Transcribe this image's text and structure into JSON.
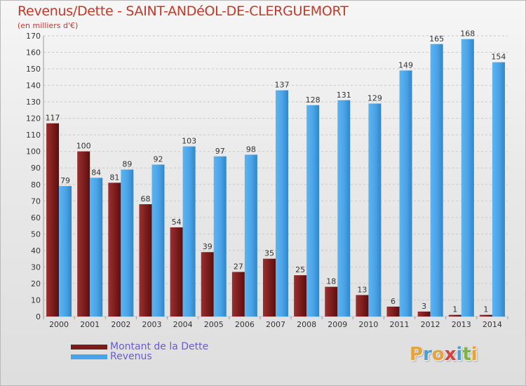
{
  "title": "Revenus/Dette - SAINT-ANDéOL-DE-CLERGUEMORT",
  "subtitle": "(en milliers d'€)",
  "logo": {
    "letters": [
      "P",
      "r",
      "o",
      "x",
      "i",
      "t",
      "i"
    ],
    "colors": [
      "#e8a23a",
      "#4a9fd8",
      "#e8a23a",
      "#d8413a",
      "#4a9fd8",
      "#7cb342",
      "#e8a23a"
    ]
  },
  "legend": [
    {
      "label": "Montant de la Dette",
      "color": "#7b1c1c"
    },
    {
      "label": "Revenus",
      "color": "#4aa3e6"
    }
  ],
  "colors": {
    "debt": "#7b1c1c",
    "revenue": "#4aa3e6",
    "grid": "#c9c9c9",
    "axis_text": "#333333",
    "title": "#c0392b"
  },
  "chart_data": {
    "type": "bar",
    "categories": [
      "2000",
      "2001",
      "2002",
      "2003",
      "2004",
      "2005",
      "2006",
      "2007",
      "2008",
      "2009",
      "2010",
      "2011",
      "2012",
      "2013",
      "2014"
    ],
    "series": [
      {
        "name": "Montant de la Dette",
        "values": [
          117,
          100,
          81,
          68,
          54,
          39,
          27,
          35,
          25,
          18,
          13,
          6,
          3,
          1,
          1
        ]
      },
      {
        "name": "Revenus",
        "values": [
          79,
          84,
          89,
          92,
          103,
          97,
          98,
          137,
          128,
          131,
          129,
          149,
          165,
          168,
          154
        ]
      }
    ],
    "title": "Revenus/Dette - SAINT-ANDéOL-DE-CLERGUEMORT",
    "ylabel": "(en milliers d'€)",
    "ylim": [
      0,
      170
    ],
    "yticks": [
      0,
      10,
      20,
      30,
      40,
      50,
      60,
      70,
      80,
      90,
      100,
      110,
      120,
      130,
      140,
      150,
      160,
      170
    ],
    "grid": true,
    "legend_position": "bottom-left"
  }
}
